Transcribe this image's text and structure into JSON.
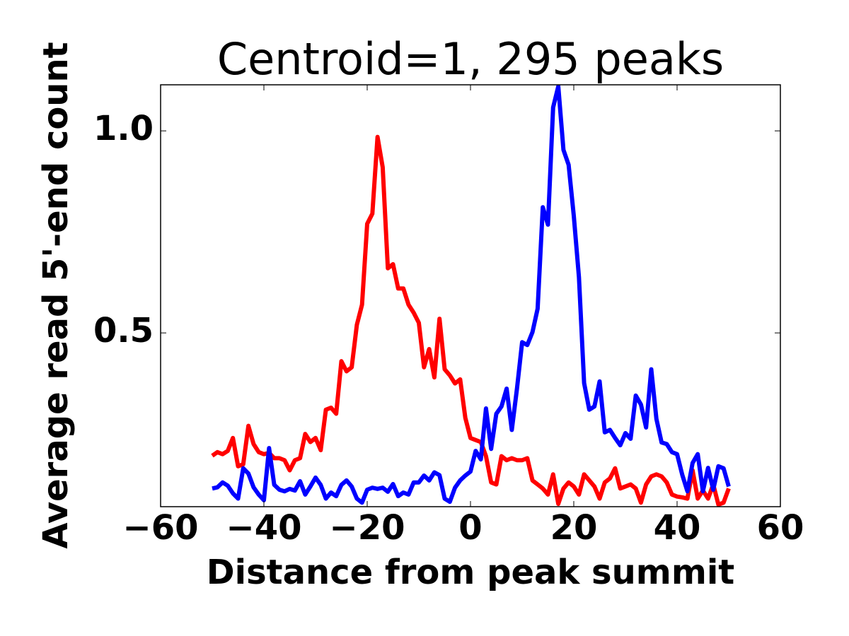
{
  "chart_data": {
    "type": "line",
    "title": "Centroid=1, 295 peaks",
    "xlabel": "Distance from peak summit",
    "ylabel": "Average read 5'-end count",
    "x": [
      -50,
      -49,
      -48,
      -47,
      -46,
      -45,
      -44,
      -43,
      -42,
      -41,
      -40,
      -39,
      -38,
      -37,
      -36,
      -35,
      -34,
      -33,
      -32,
      -31,
      -30,
      -29,
      -28,
      -27,
      -26,
      -25,
      -24,
      -23,
      -22,
      -21,
      -20,
      -19,
      -18,
      -17,
      -16,
      -15,
      -14,
      -13,
      -12,
      -11,
      -10,
      -9,
      -8,
      -7,
      -6,
      -5,
      -4,
      -3,
      -2,
      -1,
      0,
      1,
      2,
      3,
      4,
      5,
      6,
      7,
      8,
      9,
      10,
      11,
      12,
      13,
      14,
      15,
      16,
      17,
      18,
      19,
      20,
      21,
      22,
      23,
      24,
      25,
      26,
      27,
      28,
      29,
      30,
      31,
      32,
      33,
      34,
      35,
      36,
      37,
      38,
      39,
      40,
      41,
      42,
      43,
      44,
      45,
      46,
      47,
      48,
      49,
      50
    ],
    "series": [
      {
        "color": "#ff0000",
        "values": [
          0.196,
          0.205,
          0.2,
          0.208,
          0.24,
          0.17,
          0.175,
          0.27,
          0.225,
          0.205,
          0.2,
          0.203,
          0.19,
          0.19,
          0.185,
          0.16,
          0.185,
          0.19,
          0.25,
          0.23,
          0.24,
          0.21,
          0.31,
          0.315,
          0.3,
          0.43,
          0.405,
          0.415,
          0.52,
          0.57,
          0.77,
          0.795,
          0.985,
          0.91,
          0.66,
          0.67,
          0.61,
          0.61,
          0.57,
          0.55,
          0.525,
          0.415,
          0.46,
          0.39,
          0.535,
          0.41,
          0.395,
          0.375,
          0.385,
          0.29,
          0.24,
          0.235,
          0.23,
          0.195,
          0.13,
          0.125,
          0.195,
          0.185,
          0.19,
          0.185,
          0.185,
          0.19,
          0.135,
          0.125,
          0.115,
          0.1,
          0.15,
          0.077,
          0.115,
          0.13,
          0.12,
          0.1,
          0.15,
          0.135,
          0.12,
          0.09,
          0.13,
          0.14,
          0.165,
          0.115,
          0.12,
          0.125,
          0.115,
          0.08,
          0.125,
          0.145,
          0.15,
          0.145,
          0.13,
          0.1,
          0.095,
          0.093,
          0.09,
          0.16,
          0.09,
          0.11,
          0.09,
          0.125,
          0.075,
          0.08,
          0.115
        ]
      },
      {
        "color": "#0000ff",
        "values": [
          0.115,
          0.118,
          0.13,
          0.122,
          0.103,
          0.09,
          0.165,
          0.152,
          0.118,
          0.1,
          0.086,
          0.215,
          0.124,
          0.112,
          0.108,
          0.114,
          0.11,
          0.133,
          0.1,
          0.12,
          0.142,
          0.124,
          0.09,
          0.105,
          0.096,
          0.124,
          0.135,
          0.12,
          0.09,
          0.08,
          0.112,
          0.117,
          0.114,
          0.117,
          0.107,
          0.126,
          0.096,
          0.105,
          0.1,
          0.13,
          0.13,
          0.147,
          0.135,
          0.155,
          0.148,
          0.09,
          0.082,
          0.117,
          0.135,
          0.147,
          0.157,
          0.208,
          0.187,
          0.313,
          0.213,
          0.3,
          0.318,
          0.362,
          0.26,
          0.362,
          0.477,
          0.47,
          0.502,
          0.56,
          0.811,
          0.768,
          1.058,
          1.11,
          0.953,
          0.916,
          0.79,
          0.638,
          0.376,
          0.31,
          0.318,
          0.38,
          0.254,
          0.26,
          0.24,
          0.222,
          0.252,
          0.238,
          0.345,
          0.323,
          0.266,
          0.41,
          0.287,
          0.229,
          0.225,
          0.205,
          0.2,
          0.149,
          0.108,
          0.178,
          0.2,
          0.108,
          0.166,
          0.112,
          0.17,
          0.165,
          0.12
        ]
      }
    ],
    "xlim": [
      -60,
      60
    ],
    "xticks": [
      {
        "value": -60,
        "label": "−60"
      },
      {
        "value": -40,
        "label": "−40"
      },
      {
        "value": -20,
        "label": "−20"
      },
      0,
      20,
      40,
      60
    ],
    "ylim": [
      0.07,
      1.114
    ],
    "yticks": [
      0.5,
      {
        "value": 1,
        "label": "1.0"
      }
    ]
  }
}
